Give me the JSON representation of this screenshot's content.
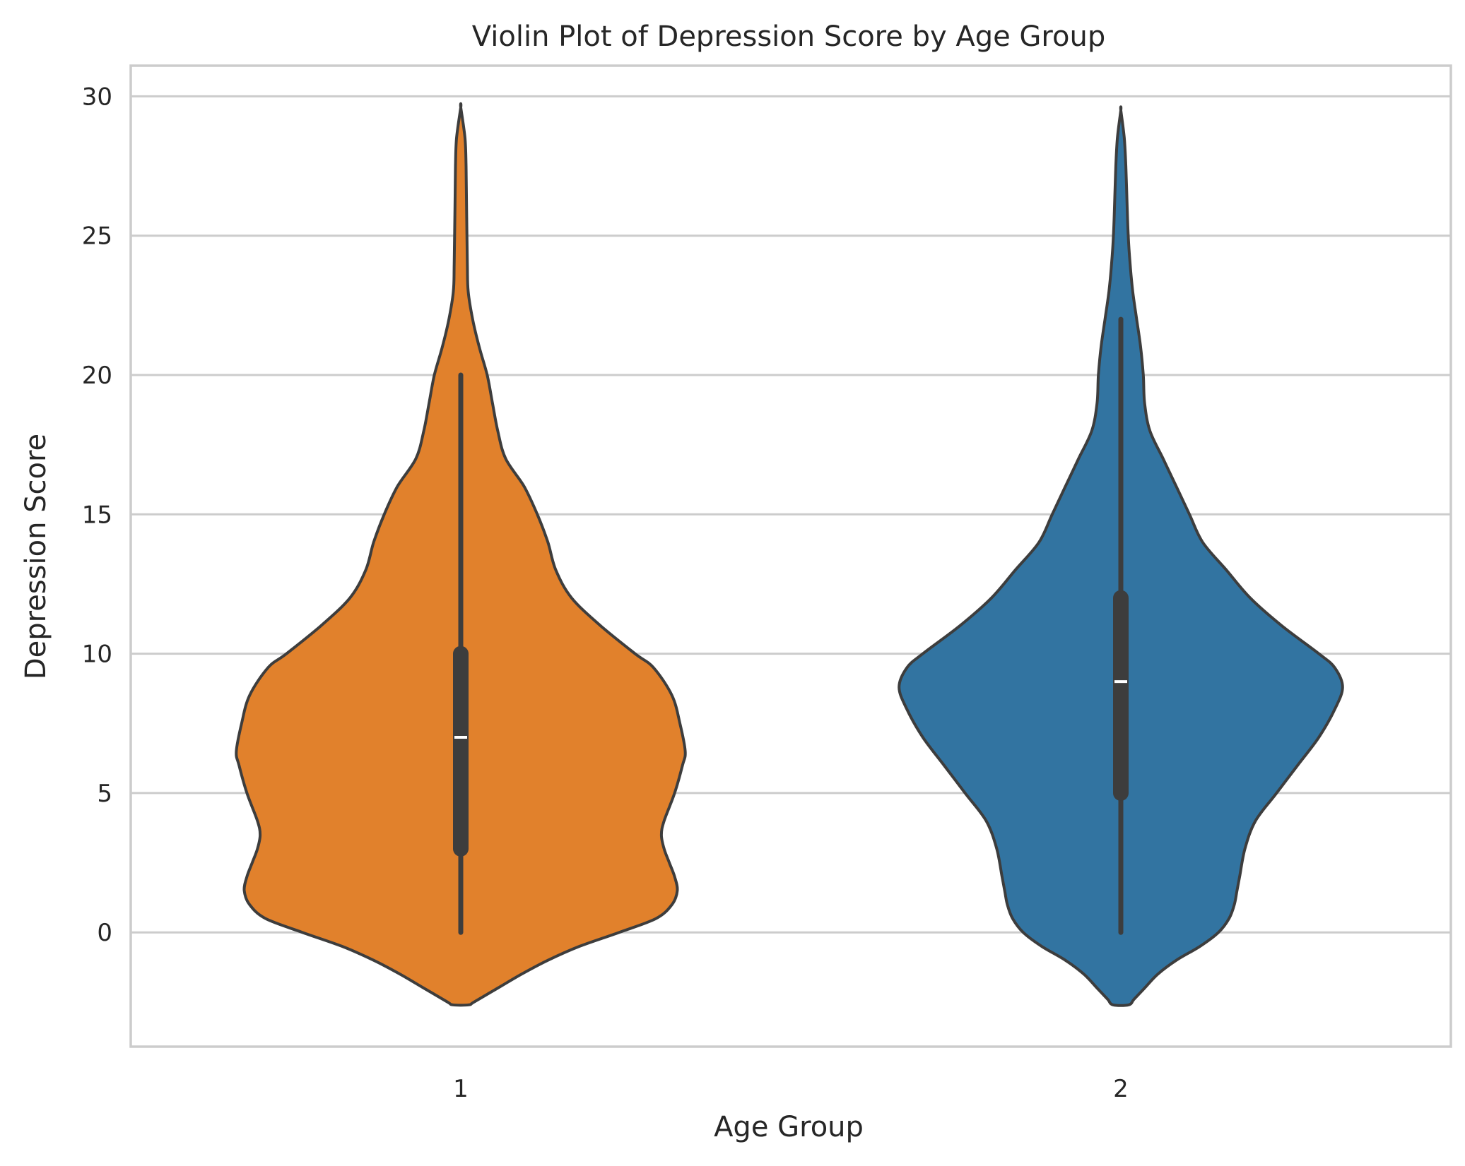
{
  "chart_data": {
    "type": "violin",
    "title": "Violin Plot of Depression Score by Age Group",
    "xlabel": "Age Group",
    "ylabel": "Depression Score",
    "categories": [
      "1",
      "2"
    ],
    "ylim": [
      -4.1,
      31.1
    ],
    "yticks": [
      0,
      5,
      10,
      15,
      20,
      25,
      30
    ],
    "grid": "horizontal",
    "colors": {
      "1": "#e1812c",
      "2": "#3274a1",
      "outline": "#3d3d3d",
      "grid": "#cccccc",
      "median": "#ffffff"
    },
    "violins": [
      {
        "category": "1",
        "median": 7,
        "q1": 3,
        "q3": 10,
        "whisker_low": 0,
        "whisker_high": 20,
        "density_profile": [
          [
            -2.6,
            0.03
          ],
          [
            -2.5,
            0.05
          ],
          [
            -2.0,
            0.14
          ],
          [
            -1.5,
            0.23
          ],
          [
            -1.0,
            0.33
          ],
          [
            -0.5,
            0.45
          ],
          [
            0.0,
            0.6
          ],
          [
            0.5,
            0.74
          ],
          [
            1.0,
            0.8
          ],
          [
            1.5,
            0.82
          ],
          [
            2.0,
            0.81
          ],
          [
            2.5,
            0.79
          ],
          [
            3.0,
            0.77
          ],
          [
            3.5,
            0.76
          ],
          [
            4.0,
            0.77
          ],
          [
            5.0,
            0.81
          ],
          [
            6.0,
            0.84
          ],
          [
            6.5,
            0.85
          ],
          [
            7.5,
            0.83
          ],
          [
            8.5,
            0.8
          ],
          [
            9.5,
            0.73
          ],
          [
            10.0,
            0.66
          ],
          [
            11.0,
            0.53
          ],
          [
            12.0,
            0.42
          ],
          [
            13.0,
            0.36
          ],
          [
            14.0,
            0.33
          ],
          [
            15.0,
            0.29
          ],
          [
            16.0,
            0.24
          ],
          [
            17.0,
            0.17
          ],
          [
            18.0,
            0.14
          ],
          [
            19.0,
            0.12
          ],
          [
            20.0,
            0.1
          ],
          [
            21.0,
            0.07
          ],
          [
            22.0,
            0.045
          ],
          [
            23.0,
            0.028
          ],
          [
            24.0,
            0.025
          ],
          [
            26.0,
            0.022
          ],
          [
            27.5,
            0.02
          ],
          [
            28.5,
            0.016
          ],
          [
            29.6,
            0.0
          ]
        ]
      },
      {
        "category": "2",
        "median": 9,
        "q1": 5,
        "q3": 12,
        "whisker_low": 0,
        "whisker_high": 22,
        "density_profile": [
          [
            -2.6,
            0.03
          ],
          [
            -2.4,
            0.05
          ],
          [
            -2.0,
            0.09
          ],
          [
            -1.5,
            0.14
          ],
          [
            -1.0,
            0.21
          ],
          [
            -0.5,
            0.3
          ],
          [
            0.0,
            0.37
          ],
          [
            0.5,
            0.41
          ],
          [
            1.0,
            0.43
          ],
          [
            1.5,
            0.44
          ],
          [
            2.0,
            0.45
          ],
          [
            3.0,
            0.47
          ],
          [
            4.0,
            0.51
          ],
          [
            5.0,
            0.59
          ],
          [
            6.0,
            0.67
          ],
          [
            7.0,
            0.75
          ],
          [
            8.0,
            0.81
          ],
          [
            8.8,
            0.84
          ],
          [
            9.5,
            0.81
          ],
          [
            10.0,
            0.75
          ],
          [
            11.0,
            0.61
          ],
          [
            12.0,
            0.49
          ],
          [
            13.0,
            0.4
          ],
          [
            14.0,
            0.31
          ],
          [
            15.0,
            0.26
          ],
          [
            16.0,
            0.21
          ],
          [
            17.0,
            0.16
          ],
          [
            18.0,
            0.11
          ],
          [
            19.0,
            0.09
          ],
          [
            20.0,
            0.085
          ],
          [
            21.0,
            0.075
          ],
          [
            22.0,
            0.06
          ],
          [
            23.0,
            0.045
          ],
          [
            24.0,
            0.035
          ],
          [
            25.0,
            0.028
          ],
          [
            26.0,
            0.024
          ],
          [
            27.5,
            0.019
          ],
          [
            28.5,
            0.013
          ],
          [
            29.5,
            0.0
          ]
        ]
      }
    ]
  }
}
